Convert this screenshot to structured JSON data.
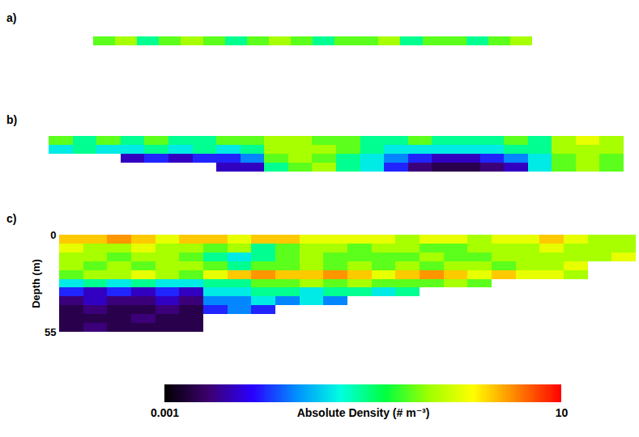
{
  "chart_data": [
    {
      "type": "heatmap",
      "title": "a)",
      "tick_labels": false,
      "depth_bins": [
        0,
        5
      ],
      "cells": [
        [
          0.3,
          0.5,
          0.1,
          0.3,
          0.5,
          0.3,
          0.1,
          0.3,
          0.5,
          0.3,
          0.1,
          0.3,
          0.3,
          0.5,
          0.1,
          0.3,
          0.3,
          0.1,
          0.3,
          0.5
        ]
      ]
    },
    {
      "type": "heatmap",
      "title": "b)",
      "tick_labels": false,
      "depth_bins": [
        0,
        5,
        10,
        15,
        20
      ],
      "cells": [
        [
          0.3,
          0.1,
          0.3,
          0.1,
          0.3,
          0.1,
          0.1,
          0.3,
          0.3,
          0.5,
          0.5,
          0.3,
          0.3,
          0.1,
          0.1,
          0.3,
          0.1,
          0.1,
          0.1,
          0.3,
          0.1,
          0.5,
          1,
          0.5
        ],
        [
          0.05,
          0.1,
          0.05,
          0.05,
          0.1,
          0.05,
          0.1,
          0.05,
          0.1,
          0.5,
          0.5,
          0.5,
          0.3,
          0.1,
          0.05,
          0.05,
          0.05,
          0.05,
          0.05,
          0.1,
          0.1,
          0.5,
          0.5,
          0.5
        ],
        [
          null,
          null,
          null,
          0.005,
          0.01,
          0.005,
          0.01,
          0.01,
          0.02,
          0.3,
          0.5,
          0.3,
          0.1,
          0.05,
          0.02,
          0.01,
          0.005,
          0.005,
          0.01,
          0.02,
          0.05,
          0.3,
          0.5,
          0.3
        ],
        [
          null,
          null,
          null,
          null,
          null,
          null,
          null,
          0.005,
          0.005,
          0.1,
          0.3,
          0.5,
          0.1,
          0.05,
          0.01,
          0.003,
          0.002,
          0.002,
          0.003,
          0.005,
          0.05,
          0.3,
          0.5,
          0.3
        ]
      ]
    },
    {
      "type": "heatmap",
      "title": "c)",
      "tick_labels": "y",
      "ylabel": "Depth (m)",
      "ylim": [
        0,
        55
      ],
      "yticks": [
        0,
        55
      ],
      "depth_bins": [
        0,
        5,
        10,
        15,
        20,
        25,
        30,
        35,
        40,
        45,
        50,
        55
      ],
      "cells": [
        [
          2,
          2,
          3,
          2,
          1,
          2,
          2,
          1,
          2,
          2,
          1,
          1,
          1,
          1,
          0.5,
          1,
          1,
          0.5,
          1,
          1,
          2,
          1,
          0.5,
          0.5
        ],
        [
          1,
          0.5,
          0.5,
          1,
          0.5,
          0.5,
          0.3,
          0.5,
          0.1,
          0.3,
          0.5,
          0.5,
          0.3,
          0.5,
          0.5,
          0.3,
          0.3,
          0.5,
          0.5,
          0.5,
          1,
          0.5,
          0.5,
          0.5
        ],
        [
          0.5,
          0.5,
          0.3,
          0.5,
          0.5,
          0.3,
          0.1,
          0.05,
          0.1,
          0.3,
          0.5,
          0.3,
          0.3,
          0.3,
          0.3,
          0.5,
          0.3,
          0.3,
          0.5,
          0.5,
          0.5,
          0.5,
          0.5,
          1
        ],
        [
          0.5,
          0.3,
          0.5,
          0.3,
          0.5,
          0.5,
          0.3,
          0.1,
          0.3,
          0.3,
          0.5,
          0.3,
          0.5,
          0.3,
          0.5,
          0.3,
          0.5,
          0.5,
          0.3,
          0.5,
          0.5,
          1,
          null,
          null
        ],
        [
          0.3,
          0.5,
          0.5,
          1,
          0.5,
          0.3,
          1,
          2,
          3,
          2,
          2,
          3,
          2,
          1,
          2,
          3,
          2,
          1,
          2,
          1,
          1,
          0.5,
          null,
          null
        ],
        [
          0.05,
          0.1,
          0.05,
          0.1,
          0.05,
          0.05,
          0.1,
          0.1,
          0.3,
          0.3,
          0.5,
          0.3,
          0.5,
          0.3,
          0.3,
          0.3,
          0.5,
          0.3,
          null,
          null,
          null,
          null,
          null,
          null
        ],
        [
          0.01,
          0.005,
          0.01,
          0.005,
          0.01,
          0.005,
          0.05,
          0.05,
          0.1,
          0.1,
          0.05,
          0.1,
          0.1,
          0.05,
          0.1,
          null,
          null,
          null,
          null,
          null,
          null,
          null,
          null,
          null
        ],
        [
          0.003,
          0.005,
          0.003,
          0.003,
          0.005,
          0.003,
          0.02,
          0.02,
          0.05,
          0.02,
          0.05,
          0.02,
          null,
          null,
          null,
          null,
          null,
          null,
          null,
          null,
          null,
          null,
          null,
          null
        ],
        [
          0.002,
          0.003,
          0.002,
          0.002,
          0.003,
          0.002,
          0.01,
          0.02,
          0.01,
          null,
          null,
          null,
          null,
          null,
          null,
          null,
          null,
          null,
          null,
          null,
          null,
          null,
          null,
          null
        ],
        [
          0.002,
          0.002,
          0.002,
          0.003,
          0.002,
          0.002,
          null,
          null,
          null,
          null,
          null,
          null,
          null,
          null,
          null,
          null,
          null,
          null,
          null,
          null,
          null,
          null,
          null,
          null
        ],
        [
          0.002,
          0.003,
          0.002,
          0.002,
          0.002,
          0.002,
          null,
          null,
          null,
          null,
          null,
          null,
          null,
          null,
          null,
          null,
          null,
          null,
          null,
          null,
          null,
          null,
          null,
          null
        ]
      ]
    }
  ],
  "colorbar": {
    "range": [
      0.001,
      10
    ],
    "ticks": [
      0.001,
      10
    ],
    "label": "Absolute Density (# m⁻³)",
    "log": true
  }
}
